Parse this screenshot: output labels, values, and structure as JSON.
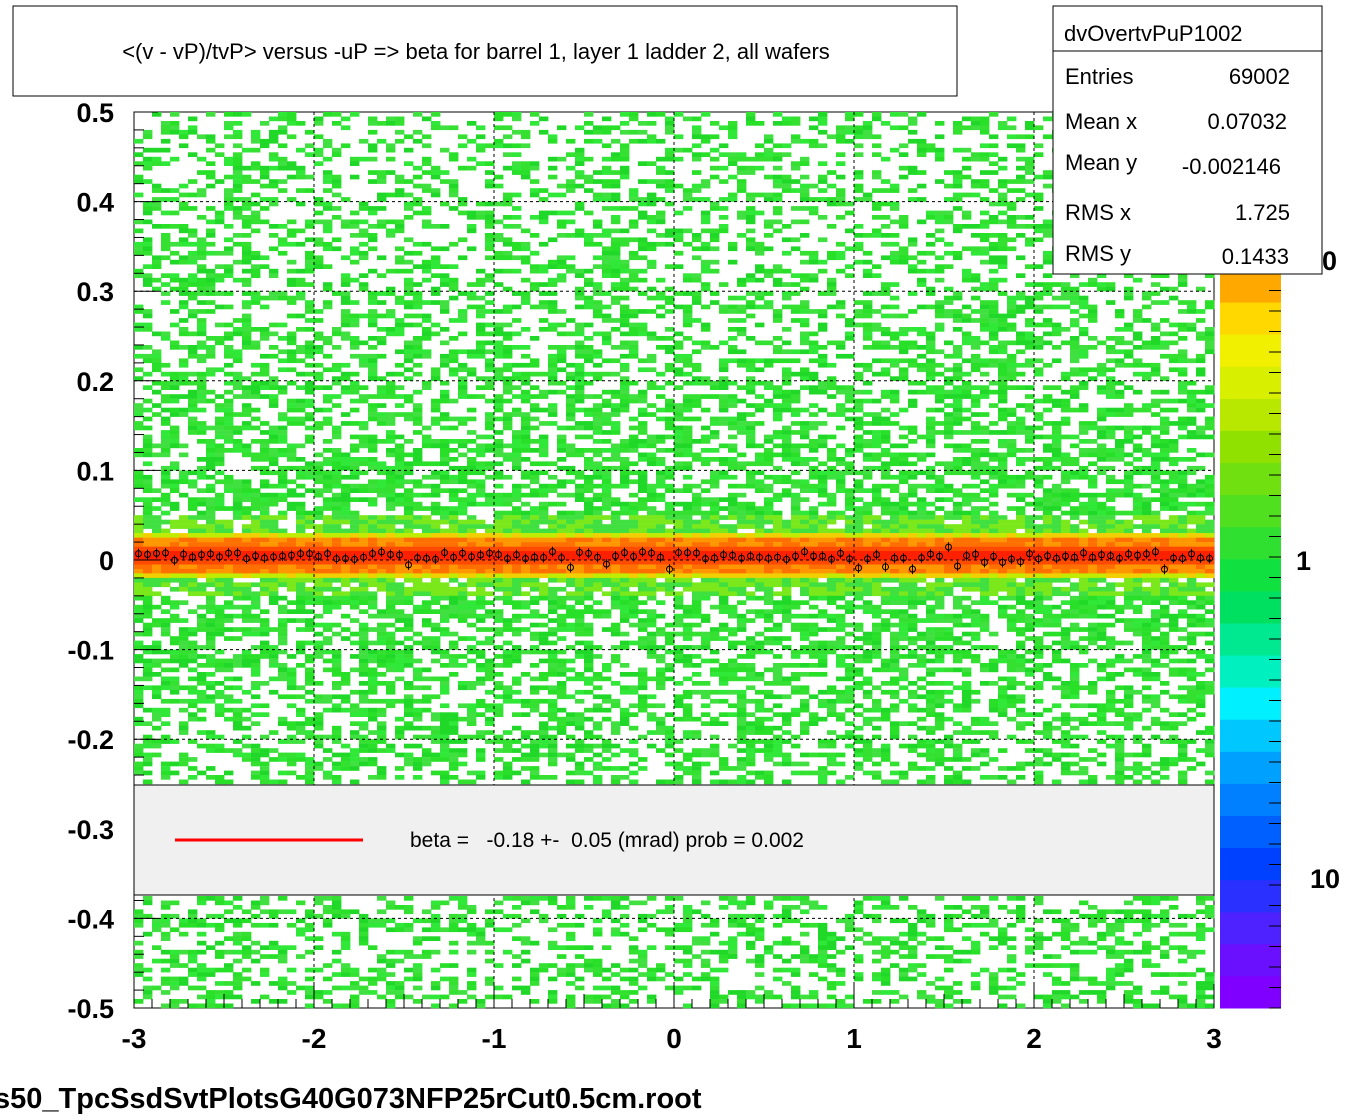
{
  "chart_data": {
    "type": "heatmap",
    "title": "<(v - vP)/tvP> versus  -uP => beta for barrel 1, layer 1 ladder 2, all wafers",
    "xlabel": "",
    "ylabel": "",
    "xlim": [
      -3,
      3
    ],
    "ylim": [
      -0.5,
      0.5
    ],
    "x_ticks": [
      "-3",
      "-2",
      "-1",
      "0",
      "1",
      "2",
      "3"
    ],
    "y_ticks": [
      "0.5",
      "0.4",
      "0.3",
      "0.2",
      "0.1",
      "0",
      "-0.1",
      "-0.2",
      "-0.3",
      "-0.4",
      "-0.5"
    ],
    "grid": true,
    "color_scale": "log",
    "palette_ticks": [
      "1",
      "10"
    ],
    "palette_partial_label": "0",
    "band_center_y": 0.005,
    "profile_mean_y": 0.005,
    "stats": {
      "name": "dvOvertvPuP1002",
      "rows": [
        {
          "label": "Entries",
          "value": "69002"
        },
        {
          "label": "Mean x",
          "value": "0.07032"
        },
        {
          "label": "Mean y",
          "value": "-0.002146"
        },
        {
          "label": "RMS x",
          "value": "1.725"
        },
        {
          "label": "RMS y",
          "value": "0.1433"
        }
      ]
    },
    "legend": {
      "text": "beta =   -0.18 +-  0.05 (mrad) prob = 0.002",
      "line_color": "#ff0000"
    },
    "footer": "s50_TpcSsdSvtPlotsG40G073NFP25rCut0.5cm.root"
  },
  "colors": {
    "palette": [
      "#7f00ff",
      "#6a10ff",
      "#4d22ff",
      "#2a30ff",
      "#0040ff",
      "#0060ff",
      "#0080ff",
      "#00a0ff",
      "#00c8ff",
      "#00f0ff",
      "#00f0c0",
      "#00e890",
      "#00e060",
      "#10e040",
      "#30e030",
      "#50e020",
      "#70e010",
      "#90e000",
      "#b8e800",
      "#d8f000",
      "#f0f000",
      "#ffd800",
      "#ffa800"
    ],
    "band": [
      "#ff2000",
      "#ff4a00",
      "#ff7000",
      "#ff9800",
      "#f0d000",
      "#c0ec00",
      "#7ae81a",
      "#40e040"
    ]
  }
}
